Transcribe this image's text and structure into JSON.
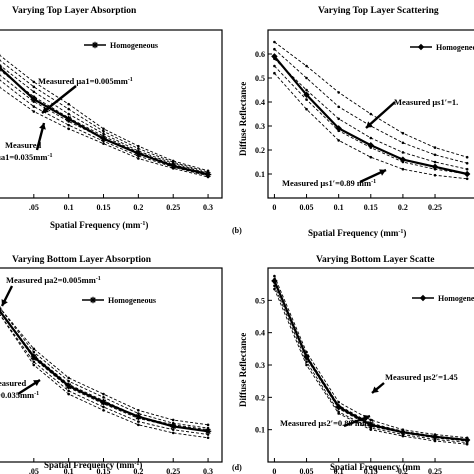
{
  "chart_data": [
    {
      "type": "line",
      "panel_label": "",
      "title": "Varying Top Layer Absorption",
      "xlabel": "Spatial Frequency (mm",
      "xlabel_sup": "-1",
      "xlabel_close": ")",
      "ylabel": "",
      "xlim": [
        -0.01,
        0.32
      ],
      "ylim": [
        0.02,
        0.7
      ],
      "xticks": [
        0.05,
        0.1,
        0.15,
        0.2,
        0.25,
        0.3
      ],
      "xtick_labels": [
        ".05",
        "0.1",
        "0.15",
        "0.2",
        "0.25",
        "0.3"
      ],
      "yticks": [],
      "x": [
        0,
        0.05,
        0.1,
        0.15,
        0.2,
        0.25,
        0.3
      ],
      "legend": {
        "label": "Homogeneous",
        "marker": "asterisk"
      },
      "annotations": [
        {
          "text": "Measured μa1=0.005mm",
          "sup": "-1"
        },
        {
          "text": "Measured",
          "sup": ""
        },
        {
          "text": "μa1=0.035mm",
          "sup": "-1"
        }
      ],
      "series": [
        {
          "values": [
            0.6,
            0.49,
            0.4,
            0.3,
            0.23,
            0.17,
            0.13
          ],
          "style": "dashed"
        },
        {
          "values": [
            0.58,
            0.47,
            0.38,
            0.29,
            0.22,
            0.165,
            0.125
          ],
          "style": "dashed"
        },
        {
          "values": [
            0.56,
            0.45,
            0.36,
            0.28,
            0.21,
            0.16,
            0.12
          ],
          "style": "dashed"
        },
        {
          "values": [
            0.54,
            0.43,
            0.345,
            0.27,
            0.205,
            0.155,
            0.118
          ],
          "style": "dashed"
        },
        {
          "values": [
            0.52,
            0.41,
            0.33,
            0.26,
            0.2,
            0.15,
            0.115
          ],
          "style": "dashed"
        },
        {
          "values": [
            0.5,
            0.39,
            0.315,
            0.25,
            0.19,
            0.145,
            0.11
          ],
          "style": "dashed"
        },
        {
          "values": [
            0.47,
            0.37,
            0.3,
            0.24,
            0.18,
            0.14,
            0.105
          ],
          "style": "dashed"
        },
        {
          "values": [
            0.55,
            0.42,
            0.34,
            0.26,
            0.2,
            0.15,
            0.115
          ],
          "style": "solid",
          "marker": "asterisk"
        }
      ]
    },
    {
      "type": "line",
      "panel_label": "(b)",
      "title": "Varying Top Layer Scattering",
      "xlabel": "Spatial Frequency (mm",
      "xlabel_sup": "-1",
      "xlabel_close": ")",
      "ylabel": "Diffuse Reflectance",
      "xlim": [
        -0.01,
        0.32
      ],
      "ylim": [
        0.0,
        0.7
      ],
      "xticks": [
        0,
        0.05,
        0.1,
        0.15,
        0.2,
        0.25
      ],
      "xtick_labels": [
        "0",
        "0.05",
        "0.1",
        "0.15",
        "0.2",
        "0.25"
      ],
      "yticks": [
        0.1,
        0.2,
        0.3,
        0.4,
        0.5,
        0.6
      ],
      "ytick_labels": [
        "0.1",
        "0.2",
        "0.3",
        "0.4",
        "0.5",
        "0.6"
      ],
      "x": [
        0,
        0.05,
        0.1,
        0.15,
        0.2,
        0.25,
        0.3
      ],
      "legend": {
        "label": "Homogeneo",
        "marker": "diamond"
      },
      "annotations": [
        {
          "text": "Measured μs1′=1.",
          "sup": ""
        },
        {
          "text": "Measured μs1′=0.89 mm",
          "sup": "-1"
        }
      ],
      "series": [
        {
          "values": [
            0.65,
            0.55,
            0.44,
            0.35,
            0.27,
            0.21,
            0.17
          ],
          "style": "dashed"
        },
        {
          "values": [
            0.62,
            0.5,
            0.38,
            0.3,
            0.23,
            0.18,
            0.145
          ],
          "style": "dashed"
        },
        {
          "values": [
            0.58,
            0.45,
            0.33,
            0.25,
            0.19,
            0.15,
            0.12
          ],
          "style": "dashed"
        },
        {
          "values": [
            0.55,
            0.41,
            0.28,
            0.21,
            0.15,
            0.12,
            0.1
          ],
          "style": "dashed"
        },
        {
          "values": [
            0.52,
            0.37,
            0.24,
            0.17,
            0.12,
            0.095,
            0.08
          ],
          "style": "dashed"
        },
        {
          "values": [
            0.59,
            0.43,
            0.29,
            0.22,
            0.16,
            0.13,
            0.1
          ],
          "style": "solid",
          "marker": "diamond"
        }
      ]
    },
    {
      "type": "line",
      "panel_label": "",
      "title": "Varying Bottom Layer Absorption",
      "xlabel": "Spatial Frequency (mm",
      "xlabel_sup": "-1",
      "xlabel_close": ")",
      "ylabel": "",
      "xlim": [
        -0.01,
        0.32
      ],
      "ylim": [
        0.05,
        0.65
      ],
      "xticks": [
        0.05,
        0.1,
        0.15,
        0.2,
        0.25,
        0.3
      ],
      "xtick_labels": [
        ".05",
        "0.1",
        "0.15",
        "0.2",
        "0.25",
        "0.3"
      ],
      "yticks": [],
      "x": [
        0,
        0.05,
        0.1,
        0.15,
        0.2,
        0.25,
        0.3
      ],
      "legend": {
        "label": "Homogeneous",
        "marker": "asterisk"
      },
      "annotations": [
        {
          "text": "Measured μa2=0.005mm",
          "sup": "-1"
        },
        {
          "text": "easured",
          "sup": ""
        },
        {
          "text": "=0.035mm",
          "sup": "-1"
        }
      ],
      "series": [
        {
          "values": [
            0.53,
            0.4,
            0.31,
            0.26,
            0.21,
            0.18,
            0.165
          ],
          "style": "dashed"
        },
        {
          "values": [
            0.53,
            0.39,
            0.3,
            0.25,
            0.2,
            0.17,
            0.155
          ],
          "style": "dashed"
        },
        {
          "values": [
            0.52,
            0.38,
            0.29,
            0.24,
            0.19,
            0.165,
            0.15
          ],
          "style": "dashed"
        },
        {
          "values": [
            0.52,
            0.37,
            0.28,
            0.23,
            0.185,
            0.16,
            0.145
          ],
          "style": "dashed"
        },
        {
          "values": [
            0.51,
            0.36,
            0.27,
            0.22,
            0.175,
            0.15,
            0.135
          ],
          "style": "dashed"
        },
        {
          "values": [
            0.51,
            0.35,
            0.26,
            0.21,
            0.165,
            0.14,
            0.125
          ],
          "style": "dashed"
        },
        {
          "values": [
            0.52,
            0.375,
            0.285,
            0.235,
            0.19,
            0.16,
            0.145
          ],
          "style": "solid",
          "marker": "asterisk"
        }
      ]
    },
    {
      "type": "line",
      "panel_label": "(d)",
      "title": "Varying Bottom Layer Scatte",
      "xlabel": "Spatial Frequency (mm",
      "xlabel_sup": "",
      "xlabel_close": "",
      "ylabel": "Diffuse Reflectance",
      "xlim": [
        -0.01,
        0.32
      ],
      "ylim": [
        0.0,
        0.6
      ],
      "xticks": [
        0,
        0.05,
        0.1,
        0.15,
        0.2,
        0.25
      ],
      "xtick_labels": [
        "0",
        "0.05",
        "0.1",
        "0.15",
        "0.2",
        "0.25"
      ],
      "yticks": [
        0.1,
        0.2,
        0.3,
        0.4,
        0.5
      ],
      "ytick_labels": [
        "0.1",
        "0.2",
        "0.3",
        "0.4",
        "0.5"
      ],
      "x": [
        0,
        0.05,
        0.1,
        0.15,
        0.2,
        0.25,
        0.3
      ],
      "legend": {
        "label": "Homogene",
        "marker": "diamond"
      },
      "annotations": [
        {
          "text": "Measured μs2′=1.45",
          "sup": ""
        },
        {
          "text": "Measured μs2′=0.89 mm",
          "sup": "-1"
        }
      ],
      "series": [
        {
          "values": [
            0.575,
            0.34,
            0.185,
            0.13,
            0.1,
            0.085,
            0.075
          ],
          "style": "dashed"
        },
        {
          "values": [
            0.565,
            0.33,
            0.175,
            0.12,
            0.095,
            0.08,
            0.07
          ],
          "style": "dashed"
        },
        {
          "values": [
            0.555,
            0.32,
            0.165,
            0.11,
            0.09,
            0.075,
            0.065
          ],
          "style": "dashed"
        },
        {
          "values": [
            0.545,
            0.31,
            0.155,
            0.105,
            0.085,
            0.07,
            0.06
          ],
          "style": "dashed"
        },
        {
          "values": [
            0.535,
            0.3,
            0.15,
            0.1,
            0.08,
            0.065,
            0.055
          ],
          "style": "dashed"
        },
        {
          "values": [
            0.56,
            0.325,
            0.17,
            0.115,
            0.092,
            0.078,
            0.068
          ],
          "style": "solid",
          "marker": "diamond"
        }
      ]
    }
  ]
}
